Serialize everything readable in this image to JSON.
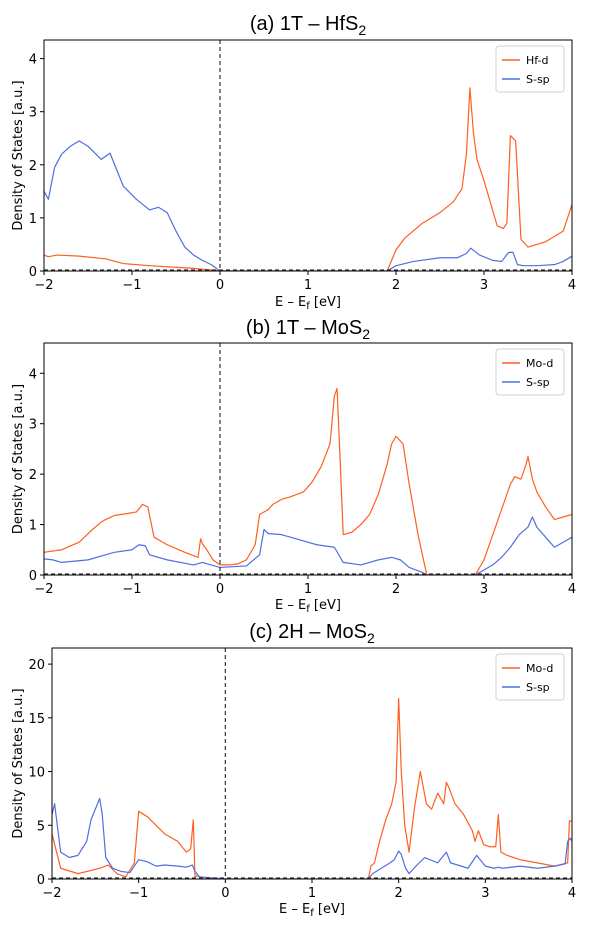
{
  "chart_data": [
    {
      "type": "line",
      "title": "(a) 1T – HfS",
      "title_sub": "2",
      "xlabel": "E – E",
      "xlabel_sub": "f",
      "xlabel_unit": " [eV]",
      "ylabel": "Density of States [a.u.]",
      "xlim": [
        -2,
        4
      ],
      "ylim": [
        0,
        4.35
      ],
      "xticks": [
        -2,
        -1,
        0,
        1,
        2,
        3,
        4
      ],
      "xtick_labels": [
        "−2",
        "−1",
        "0",
        "1",
        "2",
        "3",
        "4"
      ],
      "yticks": [
        0,
        1,
        2,
        3,
        4
      ],
      "ytick_labels": [
        "0",
        "1",
        "2",
        "3",
        "4"
      ],
      "legend_position": "top-right",
      "vline_x": 0,
      "colors": {
        "orange": "#ff5f1f",
        "blue": "#4f6fe0"
      },
      "series": [
        {
          "name": "Hf-d",
          "color": "#ff5f1f",
          "x": [
            -2,
            -1.95,
            -1.85,
            -1.6,
            -1.3,
            -1.1,
            -0.8,
            -0.5,
            -0.3,
            -0.1,
            0,
            1.9,
            1.95,
            2.0,
            2.1,
            2.3,
            2.5,
            2.65,
            2.75,
            2.8,
            2.84,
            2.88,
            2.92,
            3.0,
            3.15,
            3.22,
            3.26,
            3.3,
            3.36,
            3.42,
            3.5,
            3.7,
            3.9,
            4.0
          ],
          "y": [
            0.3,
            0.27,
            0.3,
            0.28,
            0.23,
            0.14,
            0.1,
            0.07,
            0.05,
            0.02,
            0.0,
            0.0,
            0.2,
            0.4,
            0.62,
            0.9,
            1.1,
            1.3,
            1.55,
            2.2,
            3.45,
            2.6,
            2.1,
            1.7,
            0.85,
            0.8,
            0.9,
            2.55,
            2.45,
            0.6,
            0.45,
            0.55,
            0.75,
            1.25
          ]
        },
        {
          "name": "S-sp",
          "color": "#4f6fe0",
          "x": [
            -2,
            -1.95,
            -1.88,
            -1.8,
            -1.7,
            -1.6,
            -1.5,
            -1.35,
            -1.25,
            -1.1,
            -0.95,
            -0.8,
            -0.7,
            -0.6,
            -0.5,
            -0.4,
            -0.3,
            -0.2,
            -0.1,
            0,
            1.9,
            2.0,
            2.2,
            2.5,
            2.7,
            2.8,
            2.85,
            2.95,
            3.1,
            3.2,
            3.28,
            3.33,
            3.38,
            3.45,
            3.6,
            3.8,
            3.9,
            4.0
          ],
          "y": [
            1.5,
            1.35,
            1.95,
            2.2,
            2.35,
            2.45,
            2.35,
            2.1,
            2.22,
            1.6,
            1.35,
            1.15,
            1.2,
            1.1,
            0.75,
            0.45,
            0.3,
            0.2,
            0.12,
            0.0,
            0.0,
            0.1,
            0.18,
            0.25,
            0.25,
            0.33,
            0.43,
            0.3,
            0.2,
            0.18,
            0.35,
            0.35,
            0.12,
            0.1,
            0.1,
            0.12,
            0.18,
            0.28
          ]
        }
      ]
    },
    {
      "type": "line",
      "title": "(b) 1T – MoS",
      "title_sub": "2",
      "xlabel": "E – E",
      "xlabel_sub": "f",
      "xlabel_unit": " [eV]",
      "ylabel": "Density of States [a.u.]",
      "xlim": [
        -2,
        4
      ],
      "ylim": [
        0,
        4.6
      ],
      "xticks": [
        -2,
        -1,
        0,
        1,
        2,
        3,
        4
      ],
      "xtick_labels": [
        "−2",
        "−1",
        "0",
        "1",
        "2",
        "3",
        "4"
      ],
      "yticks": [
        0,
        1,
        2,
        3,
        4
      ],
      "ytick_labels": [
        "0",
        "1",
        "2",
        "3",
        "4"
      ],
      "legend_position": "top-right",
      "vline_x": 0,
      "series": [
        {
          "name": "Mo-d",
          "color": "#ff5f1f",
          "x": [
            -2,
            -1.8,
            -1.6,
            -1.45,
            -1.35,
            -1.3,
            -1.2,
            -1.05,
            -0.95,
            -0.88,
            -0.82,
            -0.75,
            -0.6,
            -0.4,
            -0.25,
            -0.22,
            -0.2,
            -0.15,
            -0.08,
            0,
            0.1,
            0.2,
            0.3,
            0.4,
            0.45,
            0.5,
            0.55,
            0.6,
            0.7,
            0.8,
            0.95,
            1.05,
            1.15,
            1.25,
            1.3,
            1.33,
            1.36,
            1.4,
            1.5,
            1.6,
            1.7,
            1.8,
            1.9,
            1.95,
            2.0,
            2.08,
            2.15,
            2.25,
            2.35,
            2.9,
            3.0,
            3.1,
            3.2,
            3.3,
            3.35,
            3.42,
            3.48,
            3.5,
            3.55,
            3.6,
            3.7,
            3.8,
            3.9,
            4.0
          ],
          "y": [
            0.45,
            0.5,
            0.65,
            0.9,
            1.05,
            1.1,
            1.18,
            1.22,
            1.25,
            1.4,
            1.35,
            0.75,
            0.6,
            0.45,
            0.35,
            0.72,
            0.62,
            0.5,
            0.3,
            0.2,
            0.2,
            0.22,
            0.3,
            0.6,
            1.2,
            1.25,
            1.3,
            1.4,
            1.5,
            1.55,
            1.65,
            1.85,
            2.15,
            2.6,
            3.55,
            3.7,
            2.5,
            0.8,
            0.85,
            1.0,
            1.2,
            1.6,
            2.2,
            2.6,
            2.75,
            2.6,
            1.8,
            0.8,
            0.0,
            0.0,
            0.3,
            0.8,
            1.3,
            1.8,
            1.95,
            1.9,
            2.2,
            2.35,
            1.9,
            1.65,
            1.35,
            1.1,
            1.15,
            1.2
          ]
        },
        {
          "name": "S-sp",
          "color": "#4f6fe0",
          "x": [
            -2,
            -1.9,
            -1.8,
            -1.5,
            -1.3,
            -1.2,
            -1.0,
            -0.92,
            -0.85,
            -0.8,
            -0.6,
            -0.3,
            -0.2,
            -0.1,
            0,
            0.3,
            0.45,
            0.5,
            0.55,
            0.7,
            0.9,
            1.1,
            1.3,
            1.4,
            1.6,
            1.8,
            1.95,
            2.05,
            2.15,
            2.3,
            2.35,
            2.9,
            3.1,
            3.2,
            3.3,
            3.4,
            3.5,
            3.55,
            3.6,
            3.7,
            3.8,
            3.9,
            4.0
          ],
          "y": [
            0.32,
            0.3,
            0.25,
            0.3,
            0.4,
            0.45,
            0.5,
            0.6,
            0.58,
            0.4,
            0.3,
            0.2,
            0.25,
            0.2,
            0.15,
            0.18,
            0.4,
            0.9,
            0.82,
            0.8,
            0.7,
            0.6,
            0.55,
            0.25,
            0.2,
            0.3,
            0.35,
            0.3,
            0.15,
            0.05,
            0.0,
            0.0,
            0.2,
            0.35,
            0.55,
            0.8,
            0.95,
            1.15,
            0.95,
            0.75,
            0.55,
            0.65,
            0.75
          ]
        }
      ]
    },
    {
      "type": "line",
      "title": "(c) 2H – MoS",
      "title_sub": "2",
      "xlabel": "E – E",
      "xlabel_sub": "f",
      "xlabel_unit": " [eV]",
      "ylabel": "Density of States [a.u.]",
      "xlim": [
        -2,
        4
      ],
      "ylim": [
        0,
        21.5
      ],
      "xticks": [
        -2,
        -1,
        0,
        1,
        2,
        3,
        4
      ],
      "xtick_labels": [
        "−2",
        "−1",
        "0",
        "1",
        "2",
        "3",
        "4"
      ],
      "yticks": [
        0,
        5,
        10,
        15,
        20
      ],
      "ytick_labels": [
        "0",
        "5",
        "10",
        "15",
        "20"
      ],
      "legend_position": "top-right",
      "vline_x": 0,
      "series": [
        {
          "name": "Mo-d",
          "color": "#ff5f1f",
          "x": [
            -2,
            -1.9,
            -1.7,
            -1.55,
            -1.45,
            -1.35,
            -1.25,
            -1.15,
            -1.05,
            -1.0,
            -0.9,
            -0.8,
            -0.7,
            -0.55,
            -0.45,
            -0.4,
            -0.37,
            -0.35,
            -0.32,
            -0.25,
            -0.1,
            0,
            1.65,
            1.68,
            1.72,
            1.78,
            1.85,
            1.92,
            1.97,
            2.0,
            2.03,
            2.07,
            2.12,
            2.18,
            2.25,
            2.32,
            2.38,
            2.45,
            2.52,
            2.55,
            2.58,
            2.65,
            2.75,
            2.85,
            2.88,
            2.92,
            2.98,
            3.05,
            3.12,
            3.15,
            3.18,
            3.25,
            3.4,
            3.6,
            3.8,
            3.95,
            3.97,
            4.0
          ],
          "y": [
            4.2,
            1.0,
            0.5,
            0.8,
            1.0,
            1.3,
            0.5,
            0.2,
            1.5,
            6.3,
            5.8,
            5.0,
            4.2,
            3.5,
            2.5,
            2.8,
            5.5,
            0.2,
            0.3,
            0.0,
            0.0,
            0.0,
            0.0,
            1.2,
            1.5,
            3.5,
            5.5,
            7.0,
            9.0,
            16.8,
            10.0,
            5.0,
            2.5,
            6.5,
            10.0,
            7.0,
            6.5,
            8.0,
            7.0,
            9.0,
            8.5,
            7.0,
            6.0,
            4.5,
            3.5,
            4.5,
            3.2,
            3.0,
            3.0,
            6.0,
            2.5,
            2.2,
            1.8,
            1.5,
            1.2,
            1.5,
            5.4,
            5.4
          ]
        },
        {
          "name": "S-sp",
          "color": "#4f6fe0",
          "x": [
            -2,
            -1.97,
            -1.9,
            -1.8,
            -1.7,
            -1.6,
            -1.55,
            -1.5,
            -1.45,
            -1.42,
            -1.38,
            -1.3,
            -1.2,
            -1.1,
            -1.0,
            -0.9,
            -0.8,
            -0.7,
            -0.55,
            -0.45,
            -0.38,
            -0.35,
            -0.3,
            0,
            1.65,
            1.7,
            1.8,
            1.9,
            1.95,
            2.0,
            2.03,
            2.08,
            2.12,
            2.2,
            2.3,
            2.45,
            2.55,
            2.6,
            2.8,
            2.9,
            3.0,
            3.1,
            3.15,
            3.2,
            3.4,
            3.6,
            3.8,
            3.92,
            3.95,
            3.98,
            4.0
          ],
          "y": [
            6.0,
            7.0,
            2.5,
            2.0,
            2.2,
            3.5,
            5.5,
            6.5,
            7.5,
            6.0,
            2.0,
            1.0,
            0.7,
            0.6,
            1.8,
            1.6,
            1.2,
            1.3,
            1.2,
            1.1,
            1.3,
            0.7,
            0.2,
            0.0,
            0.0,
            0.5,
            1.0,
            1.5,
            1.8,
            2.6,
            2.3,
            1.0,
            0.5,
            1.2,
            2.0,
            1.5,
            2.5,
            1.5,
            1.0,
            2.2,
            1.2,
            1.0,
            1.1,
            1.0,
            1.2,
            1.0,
            1.2,
            1.4,
            3.5,
            3.8,
            3.5
          ]
        }
      ]
    }
  ]
}
